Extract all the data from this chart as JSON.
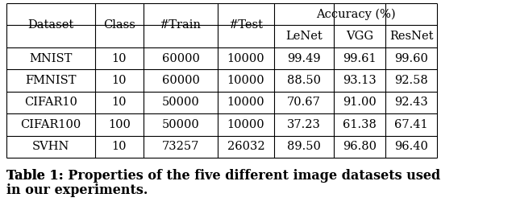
{
  "col_headers_row1": [
    "Dataset",
    "Class",
    "#Train",
    "#Test",
    "Accuracy (%)"
  ],
  "col_headers_row2": [
    "LeNet",
    "VGG",
    "ResNet"
  ],
  "rows": [
    [
      "MNIST",
      "10",
      "60000",
      "10000",
      "99.49",
      "99.61",
      "99.60"
    ],
    [
      "FMNIST",
      "10",
      "60000",
      "10000",
      "88.50",
      "93.13",
      "92.58"
    ],
    [
      "CIFAR10",
      "10",
      "50000",
      "10000",
      "70.67",
      "91.00",
      "92.43"
    ],
    [
      "CIFAR100",
      "100",
      "50000",
      "10000",
      "37.23",
      "61.38",
      "67.41"
    ],
    [
      "SVHN",
      "10",
      "73257",
      "26032",
      "89.50",
      "96.80",
      "96.40"
    ]
  ],
  "caption_bold": "Table 1: ",
  "caption_normal": "Properties of the five different image datasets used\nin our experiments.",
  "background_color": "#ffffff",
  "line_color": "#000000",
  "font_size": 10.5,
  "caption_font_size": 11.5
}
